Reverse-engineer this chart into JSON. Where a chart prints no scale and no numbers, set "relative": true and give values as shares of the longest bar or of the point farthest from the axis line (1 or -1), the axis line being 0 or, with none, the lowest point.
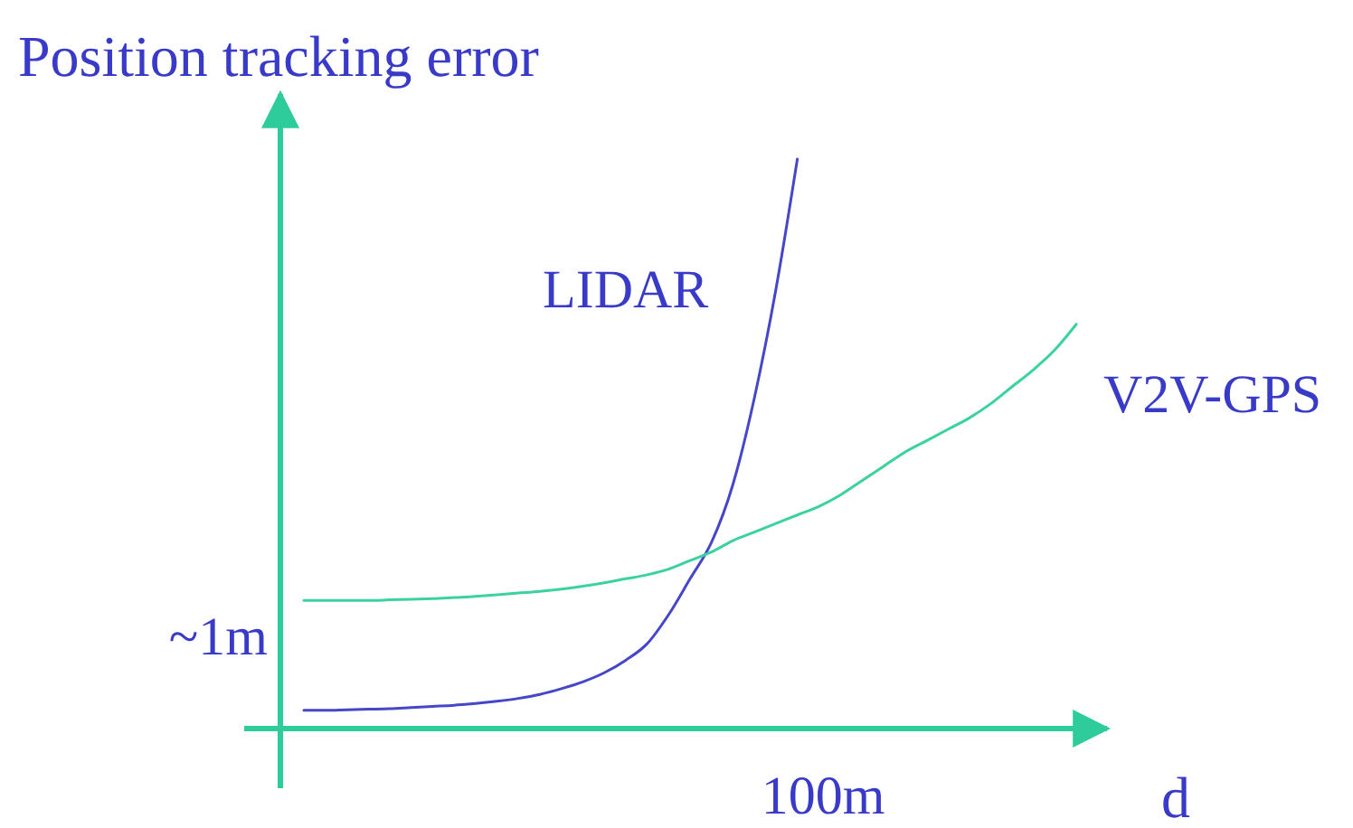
{
  "chart_data": {
    "type": "line",
    "relative": true,
    "ylabel": "Position tracking error",
    "xlabel": "d",
    "annotations": [
      "~1m",
      "100m"
    ],
    "categories": [
      null,
      null,
      null,
      null,
      null,
      null,
      null,
      null,
      null,
      null,
      null,
      null,
      null,
      null,
      null,
      null,
      null,
      null,
      null,
      null,
      null,
      null,
      null,
      null,
      null,
      null,
      null,
      null,
      null,
      null,
      null,
      null,
      null,
      null,
      null,
      null,
      null
    ],
    "series": [
      {
        "name": "LIDAR",
        "color": "#4646c8",
        "values": [
          0.032,
          0.032,
          0.033,
          0.034,
          0.035,
          0.037,
          0.039,
          0.041,
          0.044,
          0.048,
          0.053,
          0.06,
          0.07,
          0.082,
          0.098,
          0.12,
          0.149,
          0.2,
          0.263,
          0.327,
          0.429,
          0.581,
          0.771,
          1,
          null,
          null,
          null,
          null,
          null,
          null,
          null,
          null,
          null,
          null,
          null,
          null,
          null
        ]
      },
      {
        "name": "V2V-GPS",
        "color": "#3cd2a0",
        "values": [
          0.225,
          0.225,
          0.225,
          0.225,
          0.226,
          0.227,
          0.228,
          0.23,
          0.232,
          0.235,
          0.238,
          0.241,
          0.245,
          0.25,
          0.256,
          0.263,
          0.27,
          0.28,
          0.295,
          0.31,
          0.33,
          0.345,
          0.36,
          0.375,
          0.39,
          0.41,
          0.435,
          0.46,
          0.485,
          0.505,
          0.525,
          0.545,
          0.57,
          0.6,
          0.63,
          0.665,
          0.71
        ]
      }
    ]
  }
}
